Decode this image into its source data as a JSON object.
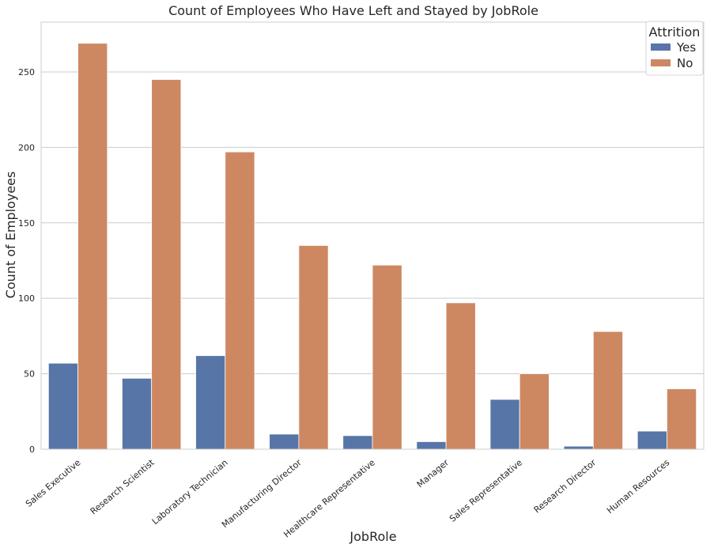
{
  "chart_data": {
    "type": "bar",
    "title": "Count of Employees Who Have Left and Stayed by JobRole",
    "xlabel": "JobRole",
    "ylabel": "Count of Employees",
    "categories": [
      "Sales Executive",
      "Research Scientist",
      "Laboratory Technician",
      "Manufacturing Director",
      "Healthcare Representative",
      "Manager",
      "Sales Representative",
      "Research Director",
      "Human Resources"
    ],
    "series": [
      {
        "name": "Yes",
        "color": "#5875a8",
        "values": [
          57,
          47,
          62,
          10,
          9,
          5,
          33,
          2,
          12
        ]
      },
      {
        "name": "No",
        "color": "#cd8862",
        "values": [
          269,
          245,
          197,
          135,
          122,
          97,
          50,
          78,
          40
        ]
      }
    ],
    "ylim": [
      0,
      283
    ],
    "yticks": [
      0,
      50,
      100,
      150,
      200,
      250
    ],
    "grid": "horizontal",
    "legend": {
      "title": "Attrition",
      "placement": "top-right"
    }
  }
}
